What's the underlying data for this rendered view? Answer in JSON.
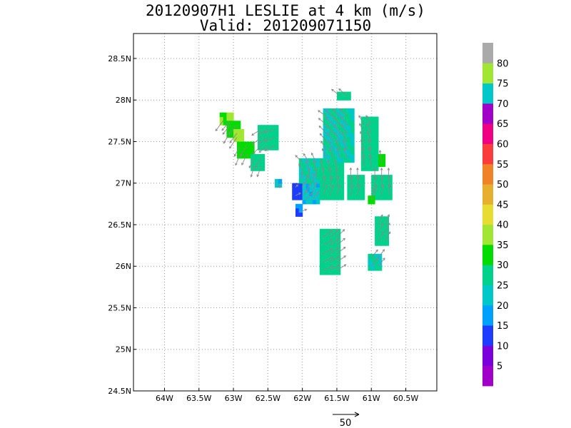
{
  "chart_data": {
    "type": "heatmap",
    "title": "20120907H1 LESLIE at 4 km (m/s)",
    "subtitle": "Valid: 201209071150",
    "xlabel": "",
    "ylabel": "",
    "xlim": [
      -64.45,
      -60.05
    ],
    "ylim": [
      24.5,
      28.8
    ],
    "grid": true,
    "x_ticks": [
      {
        "value": -64.0,
        "label": "64W"
      },
      {
        "value": -63.5,
        "label": "63.5W"
      },
      {
        "value": -63.0,
        "label": "63W"
      },
      {
        "value": -62.5,
        "label": "62.5W"
      },
      {
        "value": -62.0,
        "label": "62W"
      },
      {
        "value": -61.5,
        "label": "61.5W"
      },
      {
        "value": -61.0,
        "label": "61W"
      },
      {
        "value": -60.5,
        "label": "60.5W"
      }
    ],
    "y_ticks": [
      {
        "value": 24.5,
        "label": "24.5N"
      },
      {
        "value": 25.0,
        "label": "25N"
      },
      {
        "value": 25.5,
        "label": "25.5N"
      },
      {
        "value": 26.0,
        "label": "26N"
      },
      {
        "value": 26.5,
        "label": "26.5N"
      },
      {
        "value": 27.0,
        "label": "27N"
      },
      {
        "value": 27.5,
        "label": "27.5N"
      },
      {
        "value": 28.0,
        "label": "28N"
      },
      {
        "value": 28.5,
        "label": "28.5N"
      }
    ],
    "colorbar": {
      "labels": [
        "5",
        "10",
        "15",
        "20",
        "25",
        "30",
        "35",
        "40",
        "45",
        "50",
        "55",
        "60",
        "65",
        "70",
        "75",
        "80"
      ],
      "colors": [
        "#a000c8",
        "#7a00dc",
        "#1e3cff",
        "#00a0ff",
        "#00c8c8",
        "#00d28c",
        "#00dc00",
        "#a0e632",
        "#e6dc32",
        "#e6af2d",
        "#f08228",
        "#fa3c3c",
        "#f00082",
        "#a000c8",
        "#00c8c8",
        "#a0e632",
        "#aaaaaa"
      ]
    },
    "reference_vector": {
      "label": "50",
      "value": 50
    },
    "regions": [
      {
        "lon_min": -63.2,
        "lon_max": -63.0,
        "lat_min": 27.7,
        "lat_max": 27.85,
        "value": 35
      },
      {
        "lon_min": -63.1,
        "lon_max": -62.9,
        "lat_min": 27.55,
        "lat_max": 27.75,
        "value": 32
      },
      {
        "lon_min": -63.0,
        "lon_max": -62.85,
        "lat_min": 27.5,
        "lat_max": 27.65,
        "value": 38
      },
      {
        "lon_min": -62.95,
        "lon_max": -62.7,
        "lat_min": 27.3,
        "lat_max": 27.5,
        "value": 33
      },
      {
        "lon_min": -62.75,
        "lon_max": -62.55,
        "lat_min": 27.15,
        "lat_max": 27.35,
        "value": 27
      },
      {
        "lon_min": -62.65,
        "lon_max": -62.35,
        "lat_min": 27.4,
        "lat_max": 27.7,
        "value": 28
      },
      {
        "lon_min": -62.4,
        "lon_max": -62.3,
        "lat_min": 26.95,
        "lat_max": 27.05,
        "value": 20
      },
      {
        "lon_min": -62.15,
        "lon_max": -61.95,
        "lat_min": 26.8,
        "lat_max": 27.0,
        "value": 12
      },
      {
        "lon_min": -62.1,
        "lon_max": -62.0,
        "lat_min": 26.6,
        "lat_max": 26.75,
        "value": 15
      },
      {
        "lon_min": -62.0,
        "lon_max": -61.75,
        "lat_min": 26.75,
        "lat_max": 27.05,
        "value": 21
      },
      {
        "lon_min": -62.05,
        "lon_max": -61.7,
        "lat_min": 27.0,
        "lat_max": 27.3,
        "value": 25
      },
      {
        "lon_min": -61.75,
        "lon_max": -61.4,
        "lat_min": 26.8,
        "lat_max": 27.25,
        "value": 27
      },
      {
        "lon_min": -61.7,
        "lon_max": -61.25,
        "lat_min": 27.25,
        "lat_max": 27.9,
        "value": 25
      },
      {
        "lon_min": -61.5,
        "lon_max": -61.3,
        "lat_min": 28.0,
        "lat_max": 28.1,
        "value": 27
      },
      {
        "lon_min": -61.35,
        "lon_max": -61.1,
        "lat_min": 26.8,
        "lat_max": 27.1,
        "value": 28
      },
      {
        "lon_min": -61.15,
        "lon_max": -60.9,
        "lat_min": 27.15,
        "lat_max": 27.8,
        "value": 27
      },
      {
        "lon_min": -60.9,
        "lon_max": -60.8,
        "lat_min": 27.2,
        "lat_max": 27.35,
        "value": 33
      },
      {
        "lon_min": -61.0,
        "lon_max": -60.7,
        "lat_min": 26.8,
        "lat_max": 27.1,
        "value": 27
      },
      {
        "lon_min": -61.05,
        "lon_max": -60.95,
        "lat_min": 26.75,
        "lat_max": 26.85,
        "value": 33
      },
      {
        "lon_min": -61.75,
        "lon_max": -61.45,
        "lat_min": 25.9,
        "lat_max": 26.45,
        "value": 27
      },
      {
        "lon_min": -61.05,
        "lon_max": -60.85,
        "lat_min": 25.95,
        "lat_max": 26.15,
        "value": 25
      },
      {
        "lon_min": -60.95,
        "lon_max": -60.75,
        "lat_min": 26.25,
        "lat_max": 26.6,
        "value": 27
      }
    ]
  }
}
